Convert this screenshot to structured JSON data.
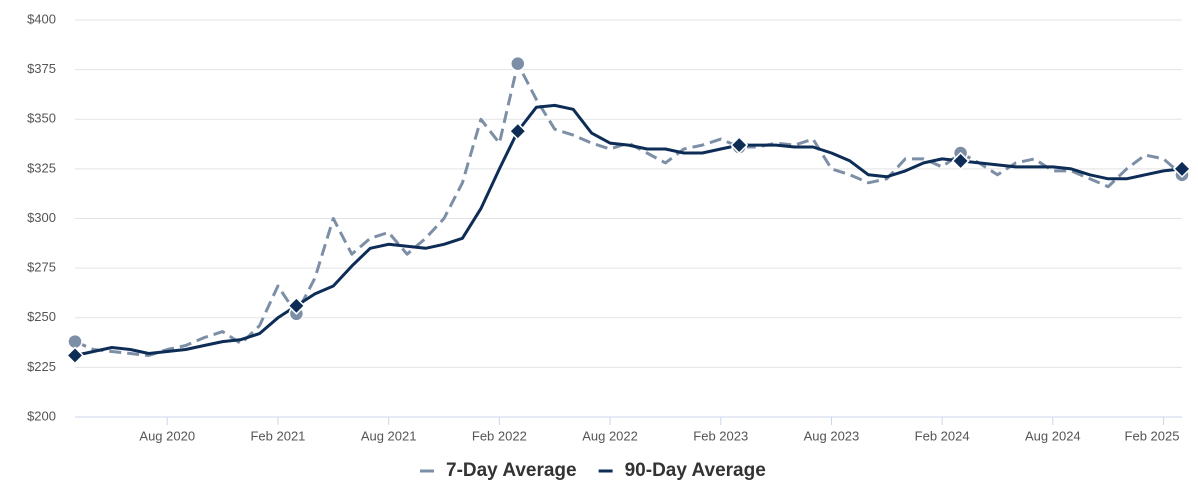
{
  "chart_data": {
    "type": "line",
    "x": [
      "2020-03",
      "2020-04",
      "2020-05",
      "2020-06",
      "2020-07",
      "2020-08",
      "2020-09",
      "2020-10",
      "2020-11",
      "2020-12",
      "2021-01",
      "2021-02",
      "2021-03",
      "2021-04",
      "2021-05",
      "2021-06",
      "2021-07",
      "2021-08",
      "2021-09",
      "2021-10",
      "2021-11",
      "2021-12",
      "2022-01",
      "2022-02",
      "2022-03",
      "2022-04",
      "2022-05",
      "2022-06",
      "2022-07",
      "2022-08",
      "2022-09",
      "2022-10",
      "2022-11",
      "2022-12",
      "2023-01",
      "2023-02",
      "2023-03",
      "2023-04",
      "2023-05",
      "2023-06",
      "2023-07",
      "2023-08",
      "2023-09",
      "2023-10",
      "2023-11",
      "2023-12",
      "2024-01",
      "2024-02",
      "2024-03",
      "2024-04",
      "2024-05",
      "2024-06",
      "2024-07",
      "2024-08",
      "2024-09",
      "2024-10",
      "2024-11",
      "2024-12",
      "2025-01",
      "2025-02",
      "2025-03"
    ],
    "series": [
      {
        "name": "7-Day Average",
        "color": "#7d8fa6",
        "dashed": true,
        "values": [
          238,
          234,
          233,
          232,
          231,
          234,
          236,
          240,
          243,
          237,
          246,
          266,
          252,
          270,
          300,
          282,
          290,
          293,
          282,
          290,
          300,
          318,
          350,
          338,
          378,
          360,
          345,
          342,
          338,
          335,
          338,
          333,
          328,
          335,
          337,
          340,
          336,
          336,
          338,
          337,
          340,
          325,
          322,
          318,
          320,
          330,
          330,
          326,
          333,
          328,
          322,
          328,
          330,
          324,
          324,
          320,
          316,
          325,
          332,
          330,
          322
        ]
      },
      {
        "name": "90-Day Average",
        "color": "#0d2d57",
        "dashed": false,
        "values": [
          231,
          233,
          235,
          234,
          232,
          233,
          234,
          236,
          238,
          239,
          242,
          250,
          256,
          262,
          266,
          276,
          285,
          287,
          286,
          285,
          287,
          290,
          305,
          325,
          344,
          356,
          357,
          355,
          343,
          338,
          337,
          335,
          335,
          333,
          333,
          335,
          337,
          337,
          337,
          336,
          336,
          333,
          329,
          322,
          321,
          324,
          328,
          330,
          329,
          328,
          327,
          326,
          326,
          326,
          325,
          322,
          320,
          320,
          322,
          324,
          325
        ]
      }
    ],
    "xlim": [
      "2020-03",
      "2025-03"
    ],
    "xticks": [
      {
        "value": "2020-08",
        "label": "Aug 2020"
      },
      {
        "value": "2021-02",
        "label": "Feb 2021"
      },
      {
        "value": "2021-08",
        "label": "Aug 2021"
      },
      {
        "value": "2022-02",
        "label": "Feb 2022"
      },
      {
        "value": "2022-08",
        "label": "Aug 2022"
      },
      {
        "value": "2023-02",
        "label": "Feb 2023"
      },
      {
        "value": "2023-08",
        "label": "Aug 2023"
      },
      {
        "value": "2024-02",
        "label": "Feb 2024"
      },
      {
        "value": "2024-08",
        "label": "Aug 2024"
      },
      {
        "value": "2025-02",
        "label": "Feb 2025"
      }
    ],
    "ylim": [
      200,
      400
    ],
    "yticks": [
      {
        "value": 200,
        "label": "$200"
      },
      {
        "value": 225,
        "label": "$225"
      },
      {
        "value": 250,
        "label": "$250"
      },
      {
        "value": 275,
        "label": "$275"
      },
      {
        "value": 300,
        "label": "$300"
      },
      {
        "value": 325,
        "label": "$325"
      },
      {
        "value": 350,
        "label": "$350"
      },
      {
        "value": 375,
        "label": "$375"
      },
      {
        "value": 400,
        "label": "$400"
      }
    ],
    "grid": true,
    "legend": "bottom"
  }
}
